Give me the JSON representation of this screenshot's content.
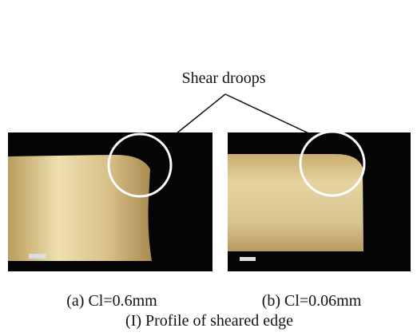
{
  "figure": {
    "annotation": "Shear droops",
    "panels": [
      {
        "caption": "(a) Cl=0.6mm"
      },
      {
        "caption": "(b) Cl=0.06mm"
      }
    ],
    "caption": "(I) Profile of sheared edge"
  }
}
